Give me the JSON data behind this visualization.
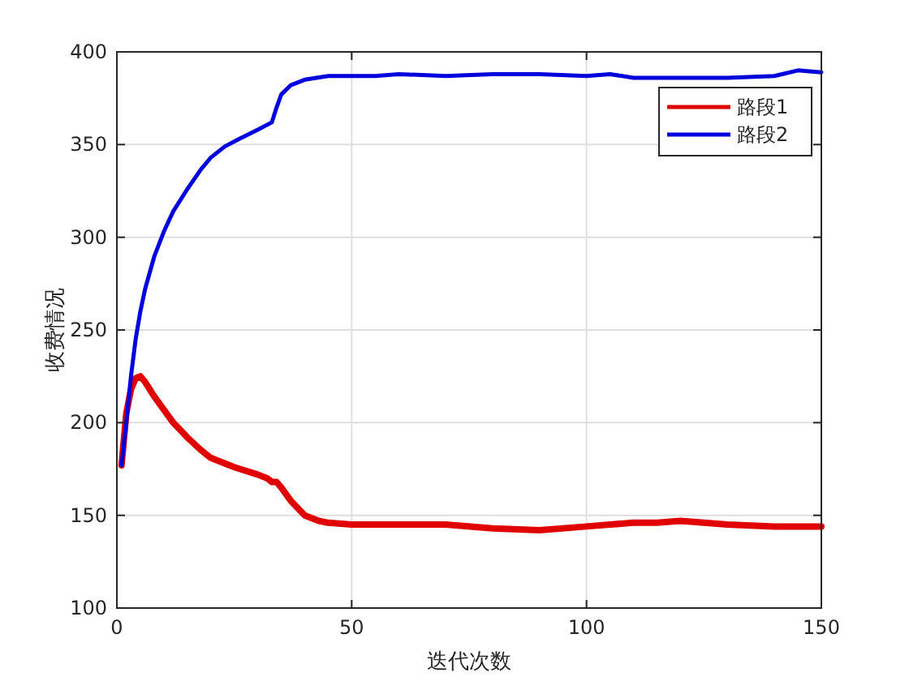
{
  "chart_data": {
    "type": "line",
    "xlabel": "迭代次数",
    "ylabel": "收费情况",
    "xlim": [
      0,
      150
    ],
    "ylim": [
      100,
      400
    ],
    "xticks": [
      0,
      50,
      100,
      150
    ],
    "yticks": [
      100,
      150,
      200,
      250,
      300,
      350,
      400
    ],
    "grid": true,
    "legend": "top right",
    "line_style": "solid",
    "marker": "none",
    "series": [
      {
        "name": "路段1",
        "color": "#e00000",
        "x": [
          1,
          2,
          3,
          4,
          5,
          6,
          8,
          10,
          12,
          15,
          18,
          20,
          25,
          30,
          32,
          33,
          34,
          35,
          37,
          40,
          43,
          45,
          50,
          60,
          70,
          80,
          90,
          100,
          105,
          110,
          115,
          120,
          125,
          130,
          140,
          145,
          150
        ],
        "values": [
          177,
          205,
          218,
          224,
          225,
          222,
          214,
          207,
          200,
          192,
          185,
          181,
          176,
          172,
          170,
          168,
          168,
          165,
          158,
          150,
          147,
          146,
          145,
          145,
          145,
          143,
          142,
          144,
          145,
          146,
          146,
          147,
          146,
          145,
          144,
          144,
          144
        ]
      },
      {
        "name": "路段2",
        "color": "#0000dd",
        "x": [
          1,
          2,
          3,
          4,
          5,
          6,
          8,
          10,
          12,
          15,
          18,
          20,
          23,
          26,
          30,
          33,
          34,
          35,
          37,
          40,
          45,
          50,
          55,
          60,
          70,
          80,
          90,
          100,
          105,
          110,
          120,
          130,
          140,
          145,
          150
        ],
        "values": [
          177,
          200,
          225,
          245,
          260,
          272,
          290,
          303,
          314,
          326,
          337,
          343,
          349,
          353,
          358,
          362,
          370,
          377,
          382,
          385,
          387,
          387,
          387,
          388,
          387,
          388,
          388,
          387,
          388,
          386,
          386,
          386,
          387,
          390,
          389
        ]
      }
    ]
  }
}
